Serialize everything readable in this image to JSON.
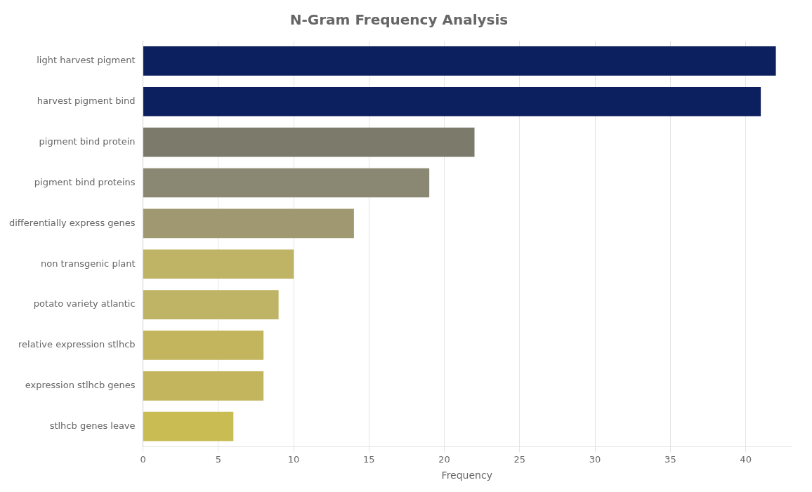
{
  "chart_data": {
    "type": "bar",
    "orientation": "horizontal",
    "title": "N-Gram Frequency Analysis",
    "categories": [
      "light harvest pigment",
      "harvest pigment bind",
      "pigment bind protein",
      "pigment bind proteins",
      "differentially express genes",
      "non transgenic plant",
      "potato variety atlantic",
      "relative expression stlhcb",
      "expression stlhcb genes",
      "stlhcb genes leave"
    ],
    "values": [
      42,
      41,
      22,
      19,
      14,
      10,
      9,
      8,
      8,
      6
    ],
    "colors": [
      "#0c1f5e",
      "#0c1f5e",
      "#7c7a6a",
      "#8a8872",
      "#a09870",
      "#bfb365",
      "#bfb365",
      "#c2b55e",
      "#c2b55e",
      "#c8bc52"
    ],
    "xlabel": "Frequency",
    "xlim": [
      0,
      43
    ],
    "xticks": [
      0,
      5,
      10,
      15,
      20,
      25,
      30,
      35,
      40
    ],
    "grid": true
  }
}
